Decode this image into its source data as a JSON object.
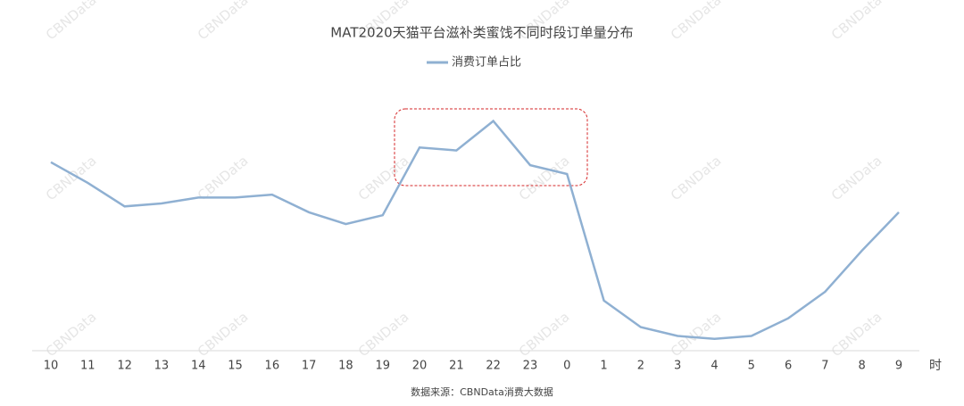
{
  "chart_data": {
    "type": "line",
    "title": "MAT2020天猫平台滋补类蜜饯不同时段订单量分布",
    "x_label": "时",
    "source": "数据来源：CBNData消费大数据",
    "watermark": "CBNData",
    "categories": [
      "10",
      "11",
      "12",
      "13",
      "14",
      "15",
      "16",
      "17",
      "18",
      "19",
      "20",
      "21",
      "22",
      "23",
      "0",
      "1",
      "2",
      "3",
      "4",
      "5",
      "6",
      "7",
      "8",
      "9"
    ],
    "series": [
      {
        "name": "消费订单占比",
        "color": "#8fb0d2",
        "values": [
          6.4,
          5.7,
          4.9,
          5.0,
          5.2,
          5.2,
          5.3,
          4.7,
          4.3,
          4.6,
          6.9,
          6.8,
          7.8,
          6.3,
          6.0,
          1.7,
          0.8,
          0.5,
          0.4,
          0.5,
          1.1,
          2.0,
          3.4,
          4.7
        ]
      }
    ],
    "ylim": [
      0,
      9
    ],
    "legend": "top"
  }
}
